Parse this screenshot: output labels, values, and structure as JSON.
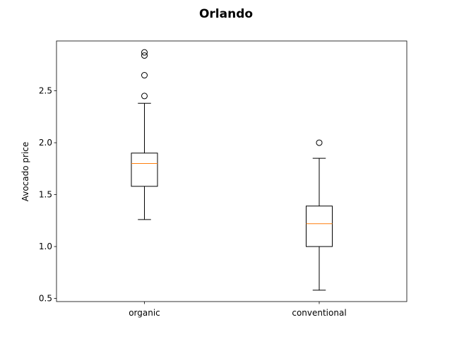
{
  "chart_data": {
    "type": "box",
    "title": "Orlando",
    "xlabel": "",
    "ylabel": "Avocado price",
    "categories": [
      "organic",
      "conventional"
    ],
    "ylim": [
      0.47,
      2.98
    ],
    "yticks": [
      0.5,
      1.0,
      1.5,
      2.0,
      2.5
    ],
    "ytick_labels": [
      "0.5",
      "1.0",
      "1.5",
      "2.0",
      "2.5"
    ],
    "grid": false,
    "boxes": [
      {
        "name": "organic",
        "whisker_low": 1.26,
        "q1": 1.58,
        "median": 1.8,
        "q3": 1.9,
        "whisker_high": 2.38,
        "outliers": [
          2.45,
          2.65,
          2.84,
          2.87
        ]
      },
      {
        "name": "conventional",
        "whisker_low": 0.58,
        "q1": 1.0,
        "median": 1.22,
        "q3": 1.39,
        "whisker_high": 1.85,
        "outliers": [
          2.0
        ]
      }
    ],
    "colors": {
      "box": "#000000",
      "median": "#ff7f0e",
      "outlier": "#000000"
    }
  }
}
